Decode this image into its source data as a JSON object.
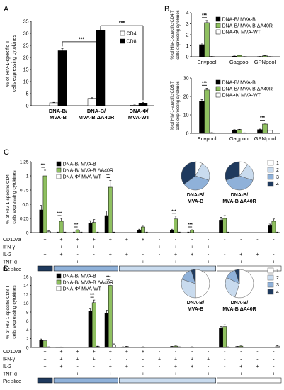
{
  "colors": {
    "black": "#000000",
    "green": "#8fc060",
    "white": "#ffffff",
    "axis": "#000000",
    "error": "#000000"
  },
  "pie_colors": [
    "#ffffff",
    "#c9dbee",
    "#8fb1d9",
    "#1f3a5e"
  ],
  "chart_data": [
    {
      "panel": "A",
      "type": "bar",
      "ylabel_lines": [
        "% of HIV-1-specific T",
        "cells expressing cytokines"
      ],
      "ylim": [
        0,
        35
      ],
      "yticks": [
        0,
        5,
        10,
        15,
        20,
        25,
        30,
        35
      ],
      "categories": [
        [
          "DNA-B/",
          "MVA-B"
        ],
        [
          "DNA-B/",
          "MVA-B ΔA40R"
        ],
        [
          "DNA-Φ/",
          "MVA-WT"
        ]
      ],
      "series": [
        {
          "name": "CD4",
          "values": [
            1.2,
            3.0,
            0.2
          ],
          "errors": [
            0.2,
            0.3,
            0.1
          ]
        },
        {
          "name": "CD8",
          "values": [
            22.8,
            31.2,
            1.1
          ],
          "errors": [
            0.9,
            1.0,
            0.3
          ]
        }
      ],
      "significance": [
        {
          "label": "***",
          "from": [
            0,
            1
          ],
          "to": [
            1,
            1
          ]
        },
        {
          "label": "***",
          "from": [
            1,
            1
          ],
          "to": [
            2,
            1
          ]
        }
      ]
    },
    {
      "panel": "B",
      "subpanel": "top",
      "type": "bar",
      "ylabel_lines": [
        "% of HIV-1-specific CD4 T",
        "cells expressing cytokines"
      ],
      "ylim": [
        0,
        4
      ],
      "yticks": [
        0,
        1,
        2,
        3,
        4
      ],
      "categories": [
        "Envpool",
        "Gagpool",
        "GPNpool"
      ],
      "series": [
        {
          "name": "DNA-B/ MVA-B",
          "values": [
            1.1,
            0.05,
            0.02
          ],
          "errors": [
            0.15,
            0.02,
            0.01
          ]
        },
        {
          "name": "DNA-B/ MVA-B ΔA40R",
          "values": [
            3.1,
            0.12,
            0.08
          ],
          "errors": [
            0.2,
            0.03,
            0.02
          ]
        },
        {
          "name": "DNA-Φ/ MVA-WT",
          "values": [
            0.02,
            0.01,
            0.01
          ],
          "errors": [
            0.01,
            0.01,
            0.01
          ]
        }
      ],
      "significance": [
        {
          "label": "***",
          "category": 0
        }
      ]
    },
    {
      "panel": "B",
      "subpanel": "bottom",
      "type": "bar",
      "ylabel_lines": [
        "% of HIV-1-specific CD8 T",
        "cells expressing cytokines"
      ],
      "ylim": [
        0,
        30
      ],
      "yticks": [
        0,
        10,
        20,
        30
      ],
      "categories": [
        "Envpool",
        "Gagpool",
        "GPNpool"
      ],
      "series": [
        {
          "name": "DNA-B/ MVA-B",
          "values": [
            17.5,
            1.8,
            2.0
          ],
          "errors": [
            0.8,
            0.2,
            0.3
          ]
        },
        {
          "name": "DNA-B/ MVA-B ΔA40R",
          "values": [
            23.5,
            2.0,
            5.0
          ],
          "errors": [
            1.0,
            0.2,
            0.5
          ]
        },
        {
          "name": "DNA-Φ/ MVA-WT",
          "values": [
            0.3,
            0.2,
            1.6
          ],
          "errors": [
            0.1,
            0.1,
            0.2
          ]
        }
      ],
      "significance": [
        {
          "label": "***",
          "category": 0
        },
        {
          "label": "***",
          "category": 2
        }
      ]
    },
    {
      "panel": "C",
      "type": "bar",
      "ylabel_lines": [
        "% of HIV-1-specific CD4 T",
        "cells expressing cytokines"
      ],
      "ylim": [
        0,
        1.25
      ],
      "yticks": [
        0,
        0.25,
        0.5,
        0.75,
        1,
        1.25
      ],
      "ytick_labels": [
        "0",
        "0,25",
        "0,5",
        "0,75",
        "1",
        "1,25"
      ],
      "series_names": [
        "DNA-B/ MVA-B",
        "DNA-B/ MVA-B ΔA40R",
        "DNA-Φ/ MVA-WT"
      ],
      "groups": [
        {
          "v": [
            0.4,
            1.0,
            0.02
          ],
          "e": [
            0.08,
            0.1,
            0.01
          ],
          "sig": true
        },
        {
          "v": [
            0.0,
            0.2,
            0.0
          ],
          "e": [
            0.01,
            0.05,
            0.01
          ],
          "sig": true
        },
        {
          "v": [
            0.0,
            0.04,
            0.0
          ],
          "e": [
            0.01,
            0.01,
            0.01
          ],
          "sig": true
        },
        {
          "v": [
            0.16,
            0.18,
            0.0
          ],
          "e": [
            0.05,
            0.05,
            0.01
          ],
          "sig": false
        },
        {
          "v": [
            0.3,
            0.8,
            0.0
          ],
          "e": [
            0.08,
            0.12,
            0.01
          ],
          "sig": true
        },
        {
          "v": [
            0.0,
            0.0,
            0.0
          ],
          "e": [
            0.0,
            0.0,
            0.0
          ],
          "sig": false
        },
        {
          "v": [
            0.04,
            0.1,
            0.0
          ],
          "e": [
            0.02,
            0.03,
            0.01
          ],
          "sig": false
        },
        {
          "v": [
            0.0,
            0.0,
            0.0
          ],
          "e": [
            0.0,
            0.0,
            0.0
          ],
          "sig": false
        },
        {
          "v": [
            0.04,
            0.24,
            0.0
          ],
          "e": [
            0.02,
            0.05,
            0.01
          ],
          "sig": true
        },
        {
          "v": [
            0.0,
            0.04,
            0.0
          ],
          "e": [
            0.01,
            0.01,
            0.0
          ],
          "sig": true
        },
        {
          "v": [
            0.0,
            0.0,
            0.0
          ],
          "e": [
            0.0,
            0.0,
            0.0
          ],
          "sig": false
        },
        {
          "v": [
            0.22,
            0.25,
            0.0
          ],
          "e": [
            0.05,
            0.05,
            0.01
          ],
          "sig": false
        },
        {
          "v": [
            0.0,
            0.0,
            0.0
          ],
          "e": [
            0.0,
            0.0,
            0.0
          ],
          "sig": false
        },
        {
          "v": [
            0.0,
            0.0,
            0.0
          ],
          "e": [
            0.0,
            0.0,
            0.0
          ],
          "sig": false
        },
        {
          "v": [
            0.12,
            0.2,
            0.0
          ],
          "e": [
            0.03,
            0.04,
            0.01
          ],
          "sig": false
        }
      ],
      "pies": [
        {
          "label_lines": [
            "DNA-B/",
            "MVA-B"
          ],
          "slices": [
            0.08,
            0.22,
            0.35,
            0.35
          ]
        },
        {
          "label_lines": [
            "DNA-B/",
            "MVA-B ΔA40R"
          ],
          "slices": [
            0.1,
            0.2,
            0.4,
            0.3
          ]
        }
      ]
    },
    {
      "panel": "D",
      "type": "bar",
      "ylabel_lines": [
        "% of HIV-1-specific CD8 T",
        "cells expressing cytokines"
      ],
      "ylim": [
        0,
        16
      ],
      "yticks": [
        0,
        2,
        4,
        6,
        8,
        10,
        12,
        14,
        16
      ],
      "series_names": [
        "DNA-B/ MVA-B",
        "DNA-B/ MVA-B ΔA40R",
        "DNA-Φ/ MVA-WT"
      ],
      "groups": [
        {
          "v": [
            1.7,
            1.5,
            0.1
          ],
          "e": [
            0.2,
            0.2,
            0.05
          ],
          "sig": false
        },
        {
          "v": [
            0.05,
            0.1,
            0.0
          ],
          "e": [
            0.02,
            0.02,
            0.0
          ],
          "sig": false
        },
        {
          "v": [
            0.0,
            0.0,
            0.0
          ],
          "e": [
            0.0,
            0.0,
            0.0
          ],
          "sig": false
        },
        {
          "v": [
            8.2,
            10.1,
            0.2
          ],
          "e": [
            0.5,
            0.6,
            0.1
          ],
          "sig": true
        },
        {
          "v": [
            7.8,
            14.0,
            0.6
          ],
          "e": [
            0.6,
            0.7,
            0.2
          ],
          "sig": true
        },
        {
          "v": [
            0.1,
            0.2,
            0.0
          ],
          "e": [
            0.05,
            0.05,
            0.0
          ],
          "sig": false
        },
        {
          "v": [
            0.0,
            0.1,
            0.0
          ],
          "e": [
            0.0,
            0.05,
            0.0
          ],
          "sig": false
        },
        {
          "v": [
            0.0,
            0.0,
            0.0
          ],
          "e": [
            0.0,
            0.0,
            0.0
          ],
          "sig": false
        },
        {
          "v": [
            0.2,
            0.3,
            0.1
          ],
          "e": [
            0.05,
            0.05,
            0.05
          ],
          "sig": false
        },
        {
          "v": [
            0.0,
            0.1,
            0.0
          ],
          "e": [
            0.0,
            0.05,
            0.0
          ],
          "sig": false
        },
        {
          "v": [
            0.0,
            0.0,
            0.0
          ],
          "e": [
            0.0,
            0.0,
            0.0
          ],
          "sig": false
        },
        {
          "v": [
            4.3,
            4.7,
            0.1
          ],
          "e": [
            0.4,
            0.4,
            0.05
          ],
          "sig": false
        },
        {
          "v": [
            0.2,
            0.3,
            0.0
          ],
          "e": [
            0.05,
            0.05,
            0.0
          ],
          "sig": false
        },
        {
          "v": [
            0.0,
            0.0,
            0.0
          ],
          "e": [
            0.0,
            0.0,
            0.0
          ],
          "sig": false
        },
        {
          "v": [
            0.0,
            0.0,
            0.3
          ],
          "e": [
            0.0,
            0.0,
            0.1
          ],
          "sig": false
        }
      ],
      "pies": [
        {
          "label_lines": [
            "DNA-B/",
            "MVA-B"
          ],
          "slices": [
            0.5,
            0.3,
            0.15,
            0.05
          ]
        },
        {
          "label_lines": [
            "DNA-B/",
            "MVA-B ΔA40R"
          ],
          "slices": [
            0.55,
            0.27,
            0.13,
            0.05
          ]
        }
      ]
    }
  ],
  "panel_letters": [
    "A",
    "B",
    "C",
    "D"
  ],
  "function_rows": [
    {
      "label": "CD107a",
      "pattern": "+++++++--------"
    },
    {
      "label": "IFN-γ",
      "pattern": "++++---++++----"
    },
    {
      "label": "IL-2",
      "pattern": "++--++--++--++-"
    },
    {
      "label": "TNF-α",
      "pattern": "+-+-+-+-+-+-+-+"
    }
  ],
  "pie_slice_label": "Pie slice",
  "pie_slice_groups": [
    1,
    4,
    6,
    4
  ],
  "pie_legend_labels": [
    "1",
    "2",
    "3",
    "4"
  ],
  "sig_label": "***"
}
